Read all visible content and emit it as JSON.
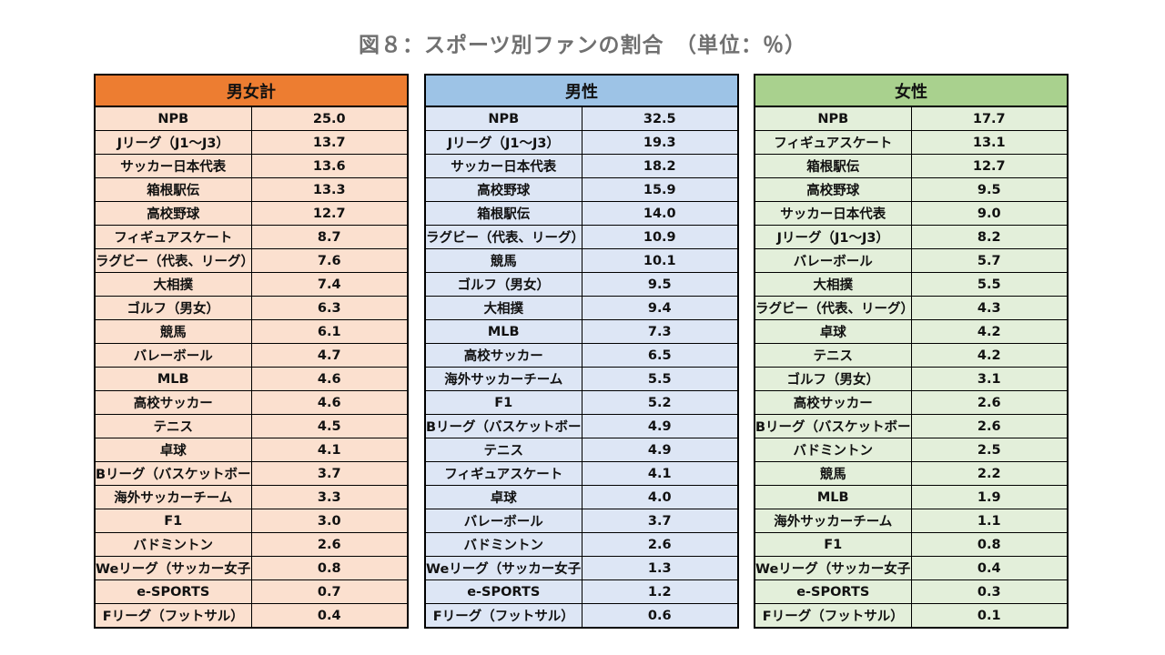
{
  "title": "図８：スポーツ別ファンの割合　（単位：％）",
  "colors": {
    "total_header": "#ed7d31",
    "total_body": "#fbe0cf",
    "male_header": "#9dc3e6",
    "male_body": "#dde6f5",
    "female_header": "#a9d18e",
    "female_body": "#e3efda"
  },
  "chart_data": {
    "type": "table",
    "title": "図８：スポーツ別ファンの割合　（単位：％）",
    "unit": "％",
    "tables": [
      {
        "name": "男女計",
        "rows": [
          [
            "NPB",
            "25.0"
          ],
          [
            "Jリーグ（J1～J3）",
            "13.7"
          ],
          [
            "サッカー日本代表",
            "13.6"
          ],
          [
            "箱根駅伝",
            "13.3"
          ],
          [
            "高校野球",
            "12.7"
          ],
          [
            "フィギュアスケート",
            "8.7"
          ],
          [
            "ラグビー（代表、リーグ）",
            "7.6"
          ],
          [
            "大相撲",
            "7.4"
          ],
          [
            "ゴルフ（男女）",
            "6.3"
          ],
          [
            "競馬",
            "6.1"
          ],
          [
            "バレーボール",
            "4.7"
          ],
          [
            "MLB",
            "4.6"
          ],
          [
            "高校サッカー",
            "4.6"
          ],
          [
            "テニス",
            "4.5"
          ],
          [
            "卓球",
            "4.1"
          ],
          [
            "Bリーグ（バスケットボール）",
            "3.7"
          ],
          [
            "海外サッカーチーム",
            "3.3"
          ],
          [
            "F1",
            "3.0"
          ],
          [
            "バドミントン",
            "2.6"
          ],
          [
            "Weリーグ（サッカー女子リーグ）",
            "0.8"
          ],
          [
            "e-SPORTS",
            "0.7"
          ],
          [
            "Fリーグ（フットサル）",
            "0.4"
          ]
        ]
      },
      {
        "name": "男性",
        "rows": [
          [
            "NPB",
            "32.5"
          ],
          [
            "Jリーグ（J1～J3）",
            "19.3"
          ],
          [
            "サッカー日本代表",
            "18.2"
          ],
          [
            "高校野球",
            "15.9"
          ],
          [
            "箱根駅伝",
            "14.0"
          ],
          [
            "ラグビー（代表、リーグ）",
            "10.9"
          ],
          [
            "競馬",
            "10.1"
          ],
          [
            "ゴルフ（男女）",
            "9.5"
          ],
          [
            "大相撲",
            "9.4"
          ],
          [
            "MLB",
            "7.3"
          ],
          [
            "高校サッカー",
            "6.5"
          ],
          [
            "海外サッカーチーム",
            "5.5"
          ],
          [
            "F1",
            "5.2"
          ],
          [
            "Bリーグ（バスケットボール）",
            "4.9"
          ],
          [
            "テニス",
            "4.9"
          ],
          [
            "フィギュアスケート",
            "4.1"
          ],
          [
            "卓球",
            "4.0"
          ],
          [
            "バレーボール",
            "3.7"
          ],
          [
            "バドミントン",
            "2.6"
          ],
          [
            "Weリーグ（サッカー女子リーグ）",
            "1.3"
          ],
          [
            "e-SPORTS",
            "1.2"
          ],
          [
            "Fリーグ（フットサル）",
            "0.6"
          ]
        ]
      },
      {
        "name": "女性",
        "rows": [
          [
            "NPB",
            "17.7"
          ],
          [
            "フィギュアスケート",
            "13.1"
          ],
          [
            "箱根駅伝",
            "12.7"
          ],
          [
            "高校野球",
            "9.5"
          ],
          [
            "サッカー日本代表",
            "9.0"
          ],
          [
            "Jリーグ（J1～J3）",
            "8.2"
          ],
          [
            "バレーボール",
            "5.7"
          ],
          [
            "大相撲",
            "5.5"
          ],
          [
            "ラグビー（代表、リーグ）",
            "4.3"
          ],
          [
            "卓球",
            "4.2"
          ],
          [
            "テニス",
            "4.2"
          ],
          [
            "ゴルフ（男女）",
            "3.1"
          ],
          [
            "高校サッカー",
            "2.6"
          ],
          [
            "Bリーグ（バスケットボール）",
            "2.6"
          ],
          [
            "バドミントン",
            "2.5"
          ],
          [
            "競馬",
            "2.2"
          ],
          [
            "MLB",
            "1.9"
          ],
          [
            "海外サッカーチーム",
            "1.1"
          ],
          [
            "F1",
            "0.8"
          ],
          [
            "Weリーグ（サッカー女子リーグ）",
            "0.4"
          ],
          [
            "e-SPORTS",
            "0.3"
          ],
          [
            "Fリーグ（フットサル）",
            "0.1"
          ]
        ]
      }
    ]
  }
}
